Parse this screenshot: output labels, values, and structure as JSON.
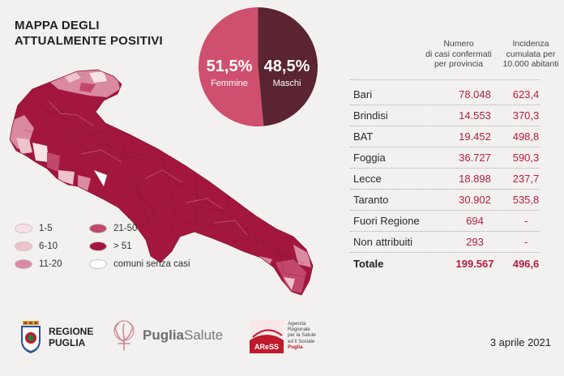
{
  "title": {
    "line1": "MAPPA DEGLI",
    "line2": "ATTUALMENTE POSITIVI"
  },
  "gender": {
    "female": {
      "pct": "51,5%",
      "label": "Femmine",
      "color": "#cf4f6e"
    },
    "male": {
      "pct": "48,5%",
      "label": "Maschi",
      "color": "#5a2430"
    },
    "female_share": 51.5
  },
  "legend": {
    "items": [
      {
        "label": "1-5",
        "color": "#f7e3e6"
      },
      {
        "label": "6-10",
        "color": "#efc3cc"
      },
      {
        "label": "11-20",
        "color": "#d98aa0"
      },
      {
        "label": "21-50",
        "color": "#c2486b"
      },
      {
        "label": "> 51",
        "color": "#a3173e"
      },
      {
        "label": "comuni senza casi",
        "color": "#ffffff"
      }
    ]
  },
  "table": {
    "col_cases": "Numero di casi confermati per provincia",
    "col_cases_lines": [
      "Numero",
      "di casi confermati",
      "per provincia"
    ],
    "col_incidence_lines": [
      "Incidenza",
      "cumulata per",
      "10.000 abitanti"
    ],
    "rows": [
      {
        "name": "Bari",
        "cases": "78.048",
        "incidence": "623,4"
      },
      {
        "name": "Brindisi",
        "cases": "14.553",
        "incidence": "370,3"
      },
      {
        "name": "BAT",
        "cases": "19.452",
        "incidence": "498,8"
      },
      {
        "name": "Foggia",
        "cases": "36.727",
        "incidence": "590,3"
      },
      {
        "name": "Lecce",
        "cases": "18.898",
        "incidence": "237,7"
      },
      {
        "name": "Taranto",
        "cases": "30.902",
        "incidence": "535,8"
      },
      {
        "name": "Fuori Regione",
        "cases": "694",
        "incidence": "-"
      },
      {
        "name": "Non attribuiti",
        "cases": "293",
        "incidence": "-"
      }
    ],
    "total": {
      "name": "Totale",
      "cases": "199.567",
      "incidence": "496,6"
    }
  },
  "logos": {
    "regione": [
      "REGIONE",
      "PUGLIA"
    ],
    "puglia_salute": {
      "bold": "Puglia",
      "light": "Salute"
    },
    "ares": {
      "mark": "AReSS",
      "lines": [
        "Agenzia",
        "Regionale",
        "per la Salute",
        "ed il Sociale"
      ],
      "region": "Puglia"
    }
  },
  "date": "3 aprile 2021",
  "colors": {
    "accent": "#b31d43",
    "map_main": "#a3173e"
  }
}
